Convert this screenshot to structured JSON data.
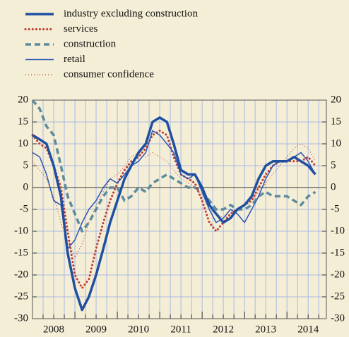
{
  "chart_data": {
    "type": "line",
    "x": [
      2008,
      2008.17,
      2008.33,
      2008.5,
      2008.67,
      2008.83,
      2009,
      2009.17,
      2009.33,
      2009.5,
      2009.67,
      2009.83,
      2010,
      2010.17,
      2010.33,
      2010.5,
      2010.67,
      2010.83,
      2011,
      2011.17,
      2011.33,
      2011.5,
      2011.67,
      2011.83,
      2012,
      2012.17,
      2012.33,
      2012.5,
      2012.67,
      2012.83,
      2013,
      2013.17,
      2013.33,
      2013.5,
      2013.67,
      2013.83,
      2014,
      2014.17,
      2014.33,
      2014.5,
      2014.67
    ],
    "series": [
      {
        "name": "industry excluding construction",
        "color": "#1f4fa0",
        "values": [
          12,
          11,
          10,
          5,
          -2,
          -15,
          -23,
          -28,
          -25,
          -20,
          -14,
          -8,
          -3,
          2,
          5,
          8,
          10,
          15,
          16,
          15,
          10,
          4,
          3,
          3,
          0,
          -4,
          -6,
          -8,
          -7,
          -5,
          -4,
          -2,
          2,
          5,
          6,
          6,
          6,
          7,
          6,
          5,
          3
        ]
      },
      {
        "name": "services",
        "color": "#c0392b",
        "values": [
          12,
          10,
          9,
          5,
          0,
          -10,
          -20,
          -23,
          -21,
          -14,
          -8,
          -3,
          1,
          4,
          6,
          7,
          9,
          12,
          13,
          12,
          7,
          3,
          2,
          1,
          -3,
          -8,
          -10,
          -8,
          -6,
          -5,
          -4,
          -3,
          0,
          3,
          5,
          6,
          6,
          6,
          6,
          7,
          5
        ]
      },
      {
        "name": "construction",
        "color": "#5b8c9e",
        "values": [
          20,
          18,
          14,
          12,
          5,
          -2,
          -6,
          -10,
          -8,
          -5,
          -2,
          0,
          0,
          -3,
          -2,
          0,
          -1,
          1,
          2,
          3,
          2,
          1,
          0,
          0,
          -1,
          -3,
          -5,
          -5,
          -4,
          -5,
          -5,
          -4,
          -2,
          -1,
          -2,
          -2,
          -2,
          -3,
          -4,
          -2,
          -1
        ]
      },
      {
        "name": "retail",
        "color": "#2a55b5",
        "values": [
          8,
          7,
          3,
          -3,
          -4,
          -14,
          -12,
          -8,
          -5,
          -3,
          0,
          2,
          1,
          3,
          5,
          6,
          8,
          13,
          12,
          10,
          8,
          3,
          2,
          3,
          -1,
          -5,
          -8,
          -7,
          -5,
          -6,
          -8,
          -5,
          -2,
          2,
          5,
          6,
          6,
          7,
          8,
          6,
          3
        ]
      },
      {
        "name": "consumer confidence",
        "color": "#b5483a",
        "values": [
          6,
          4,
          2,
          -2,
          -8,
          -12,
          -16,
          -13,
          -8,
          -4,
          -1,
          2,
          3,
          5,
          7,
          8,
          7,
          8,
          7,
          6,
          4,
          2,
          1,
          0,
          -2,
          -5,
          -6,
          -7,
          -6,
          -5,
          -4,
          -3,
          -1,
          1,
          3,
          5,
          7,
          9,
          10,
          9,
          6
        ]
      }
    ],
    "xlim": [
      2008,
      2014.93
    ],
    "xticks": [
      2008,
      2009,
      2010,
      2011,
      2012,
      2013,
      2014
    ],
    "ylim": [
      -30,
      20
    ],
    "yticks": [
      -30,
      -25,
      -20,
      -15,
      -10,
      -5,
      0,
      5,
      10,
      15,
      20
    ],
    "y2lim": [
      -30,
      20
    ],
    "y2ticks": [
      -30,
      -25,
      -20,
      -15,
      -10,
      -5,
      0,
      5,
      10,
      15,
      20
    ],
    "grid": true,
    "legend": "top-left"
  }
}
